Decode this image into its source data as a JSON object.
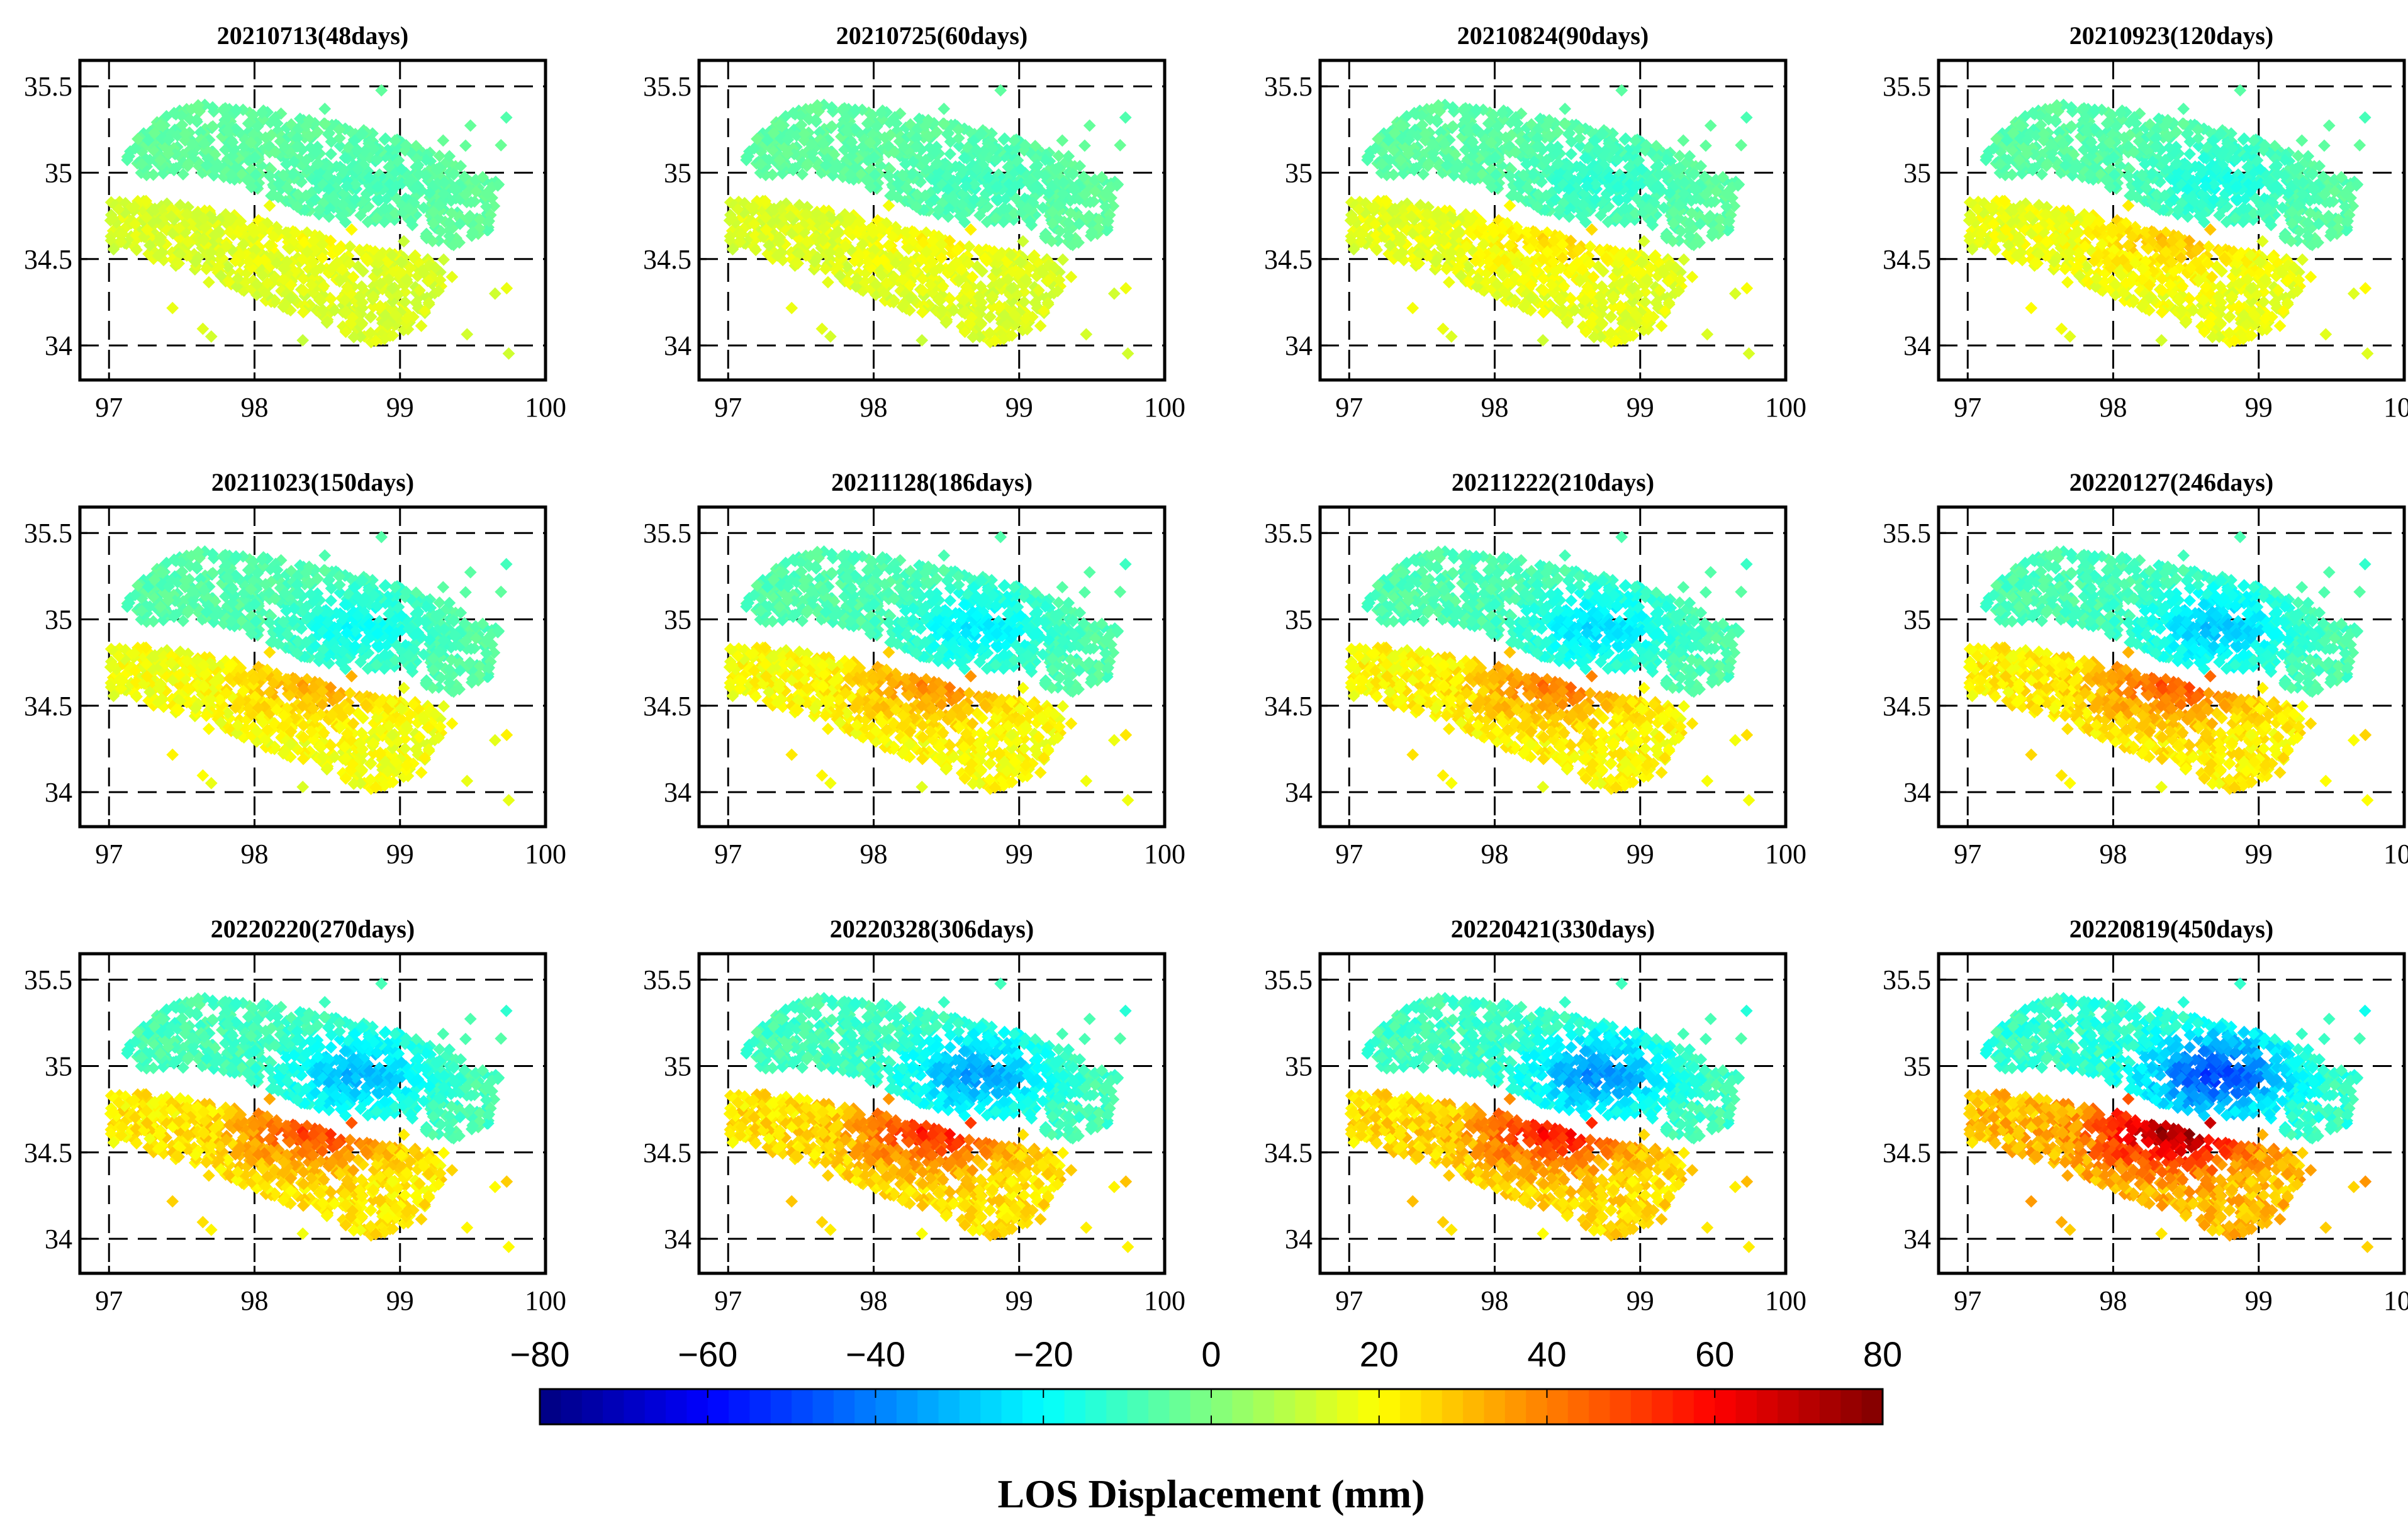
{
  "chart_data": {
    "type": "scatter",
    "title": "",
    "panels": [
      {
        "title": "20210713(48days)",
        "days": 48
      },
      {
        "title": "20210725(60days)",
        "days": 60
      },
      {
        "title": "20210824(90days)",
        "days": 90
      },
      {
        "title": "20210923(120days)",
        "days": 120
      },
      {
        "title": "20211023(150days)",
        "days": 150
      },
      {
        "title": "20211128(186days)",
        "days": 186
      },
      {
        "title": "20211222(210days)",
        "days": 210
      },
      {
        "title": "20220127(246days)",
        "days": 246
      },
      {
        "title": "20220220(270days)",
        "days": 270
      },
      {
        "title": "20220328(306days)",
        "days": 306
      },
      {
        "title": "20220421(330days)",
        "days": 330
      },
      {
        "title": "20220819(450days)",
        "days": 450
      }
    ],
    "xlim": [
      96.8,
      100
    ],
    "ylim": [
      33.8,
      35.65
    ],
    "xticks": [
      97,
      98,
      99,
      100
    ],
    "xtick_labels": [
      "97",
      "98",
      "99",
      "100"
    ],
    "yticks": [
      34,
      34.5,
      35,
      35.5
    ],
    "ytick_labels": [
      "34",
      "34.5",
      "35",
      "35.5"
    ],
    "grid": "dashed",
    "colorbar": {
      "label": "LOS Displacement (mm)",
      "min": -80,
      "max": 80,
      "ticks": [
        -80,
        -60,
        -40,
        -20,
        0,
        20,
        40,
        60,
        80
      ],
      "tick_labels": [
        "−80",
        "−60",
        "−40",
        "−20",
        "0",
        "20",
        "40",
        "60",
        "80"
      ],
      "colormap": "jet"
    }
  }
}
